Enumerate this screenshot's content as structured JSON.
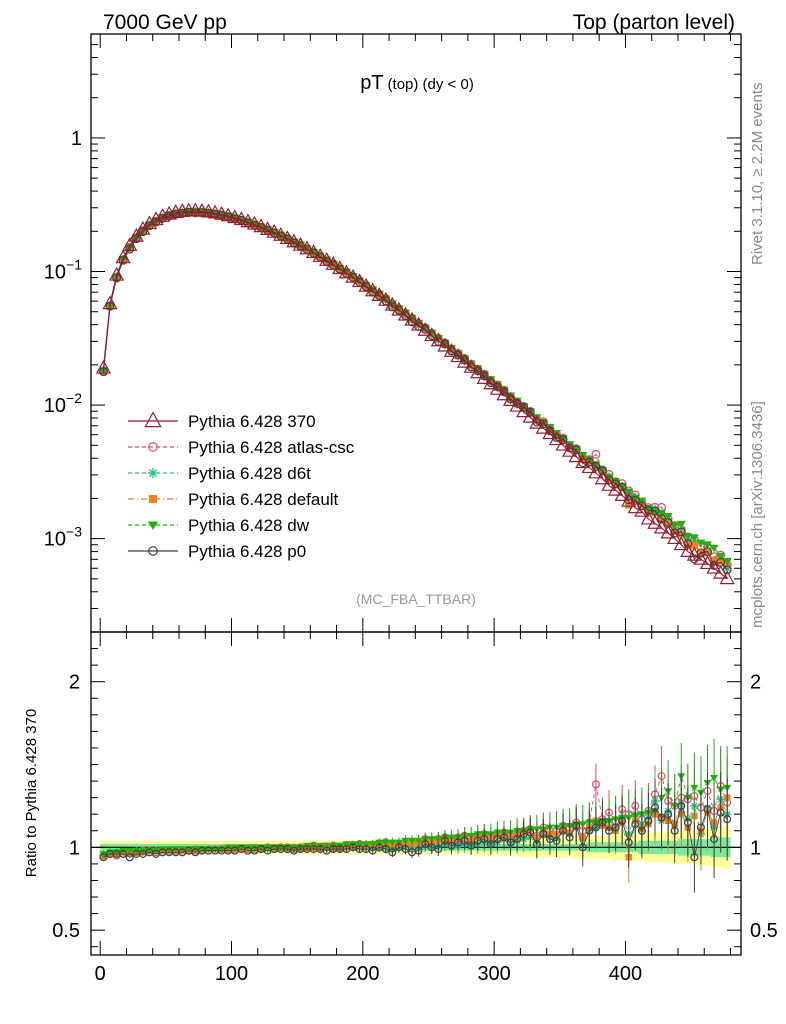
{
  "header": {
    "left": "7000 GeV pp",
    "right": "Top (parton level)"
  },
  "side_labels": {
    "rivet": "Rivet 3.1.10, ≥ 2.2M events",
    "mcplots": "mcplots.cern.ch [arXiv:1306.3436]"
  },
  "chart_data": {
    "type": "line",
    "title_main": "pT",
    "title_sub": "(top) (dy < 0)",
    "analysis_label": "(MC_FBA_TTBAR)",
    "upper": {
      "y_scale": "log",
      "ylim": [
        0.0002,
        6
      ],
      "y_ticks": [
        {
          "value": 1,
          "base": "1",
          "exp": ""
        },
        {
          "value": 0.1,
          "base": "10",
          "exp": "−1"
        },
        {
          "value": 0.01,
          "base": "10",
          "exp": "−2"
        },
        {
          "value": 0.001,
          "base": "10",
          "exp": "−3"
        }
      ]
    },
    "lower": {
      "ylabel": "Ratio to Pythia 6.428 370",
      "ylim": [
        0.35,
        2.3
      ],
      "y_ticks": [
        {
          "value": 2,
          "label": "2"
        },
        {
          "value": 1,
          "label": "1"
        },
        {
          "value": 0.5,
          "label": "0.5"
        }
      ]
    },
    "xlim": [
      -7,
      488
    ],
    "x_ticks": [
      {
        "value": 0,
        "label": "0"
      },
      {
        "value": 100,
        "label": "100"
      },
      {
        "value": 200,
        "label": "200"
      },
      {
        "value": 300,
        "label": "300"
      },
      {
        "value": 400,
        "label": "400"
      }
    ],
    "x": [
      2.5,
      7.5,
      12.5,
      17.5,
      22.5,
      27.5,
      32.5,
      37.5,
      42.5,
      47.5,
      52.5,
      57.5,
      62.5,
      67.5,
      72.5,
      77.5,
      82.5,
      87.5,
      92.5,
      97.5,
      102.5,
      107.5,
      112.5,
      117.5,
      122.5,
      127.5,
      132.5,
      137.5,
      142.5,
      147.5,
      152.5,
      157.5,
      162.5,
      167.5,
      172.5,
      177.5,
      182.5,
      187.5,
      192.5,
      197.5,
      202.5,
      207.5,
      212.5,
      217.5,
      222.5,
      227.5,
      232.5,
      237.5,
      242.5,
      247.5,
      252.5,
      257.5,
      262.5,
      267.5,
      272.5,
      277.5,
      282.5,
      287.5,
      292.5,
      297.5,
      302.5,
      307.5,
      312.5,
      317.5,
      322.5,
      327.5,
      332.5,
      337.5,
      342.5,
      347.5,
      352.5,
      357.5,
      362.5,
      367.5,
      372.5,
      377.5,
      382.5,
      387.5,
      392.5,
      397.5,
      402.5,
      407.5,
      412.5,
      417.5,
      422.5,
      427.5,
      432.5,
      437.5,
      442.5,
      447.5,
      452.5,
      457.5,
      462.5,
      467.5,
      472.5,
      477.5
    ],
    "reference": [
      0.0189,
      0.0573,
      0.0937,
      0.1265,
      0.1564,
      0.1833,
      0.2069,
      0.2273,
      0.2443,
      0.258,
      0.2686,
      0.2762,
      0.2811,
      0.2835,
      0.2837,
      0.282,
      0.2786,
      0.2738,
      0.2677,
      0.2606,
      0.2527,
      0.2442,
      0.2351,
      0.2257,
      0.216,
      0.2061,
      0.1962,
      0.1862,
      0.1763,
      0.1665,
      0.1569,
      0.1475,
      0.1383,
      0.1295,
      0.1209,
      0.1128,
      0.1049,
      0.0975,
      0.0905,
      0.0838,
      0.0775,
      0.0715,
      0.066,
      0.0608,
      0.0559,
      0.0513,
      0.0471,
      0.0432,
      0.0396,
      0.0362,
      0.0331,
      0.0302,
      0.0276,
      0.0252,
      0.023,
      0.0209,
      0.0191,
      0.0174,
      0.0158,
      0.0144,
      0.0131,
      0.0119,
      0.0108,
      0.0098,
      0.0089,
      0.0081,
      0.0073,
      0.0067,
      0.0061,
      0.0055,
      0.005,
      0.0045,
      0.0041,
      0.0037,
      0.0034,
      0.0031,
      0.0028,
      0.0025,
      0.0023,
      0.0021,
      0.0019,
      0.0017,
      0.0016,
      0.0014,
      0.0013,
      0.0012,
      0.0011,
      0.001,
      0.0009,
      0.0008,
      0.00075,
      0.0007,
      0.00065,
      0.0006,
      0.00055,
      0.0005
    ],
    "series": [
      {
        "name": "Pythia 6.428 370",
        "color": "#9a1a2e",
        "marker": "triangle-open",
        "dash": "",
        "ratio": [
          1.0,
          1.0,
          1.0,
          1.0,
          1.0,
          1.0,
          1.0,
          1.0,
          1.0,
          1.0,
          1.0,
          1.0,
          1.0,
          1.0,
          1.0,
          1.0,
          1.0,
          1.0,
          1.0,
          1.0,
          1.0,
          1.0,
          1.0,
          1.0,
          1.0,
          1.0,
          1.0,
          1.0,
          1.0,
          1.0,
          1.0,
          1.0,
          1.0,
          1.0,
          1.0,
          1.0,
          1.0,
          1.0,
          1.0,
          1.0,
          1.0,
          1.0,
          1.0,
          1.0,
          1.0,
          1.0,
          1.0,
          1.0,
          1.0,
          1.0,
          1.0,
          1.0,
          1.0,
          1.0,
          1.0,
          1.0,
          1.0,
          1.0,
          1.0,
          1.0,
          1.0,
          1.0,
          1.0,
          1.0,
          1.0,
          1.0,
          1.0,
          1.0,
          1.0,
          1.0,
          1.0,
          1.0,
          1.0,
          1.0,
          1.0,
          1.0,
          1.0,
          1.0,
          1.0,
          1.0,
          1.0,
          1.0,
          1.0,
          1.0,
          1.0,
          1.0,
          1.0,
          1.0,
          1.0,
          1.0,
          1.0,
          1.0,
          1.0,
          1.0,
          1.0,
          1.0
        ]
      },
      {
        "name": "Pythia 6.428 atlas-csc",
        "color": "#e8466e",
        "marker": "circle-open",
        "dash": "4,3",
        "ratio": [
          0.95,
          0.96,
          0.95,
          0.96,
          0.97,
          0.97,
          0.98,
          0.97,
          0.97,
          0.97,
          0.98,
          0.98,
          0.97,
          0.98,
          0.98,
          0.98,
          0.98,
          0.98,
          0.99,
          0.99,
          0.99,
          0.99,
          0.99,
          0.99,
          0.99,
          1.0,
          0.99,
          1.0,
          1.0,
          0.99,
          1.0,
          1.0,
          1.01,
          1.0,
          1.0,
          1.01,
          1.0,
          1.01,
          1.01,
          1.02,
          1.01,
          1.0,
          1.02,
          1.03,
          1.01,
          1.02,
          1.02,
          1.03,
          1.03,
          1.05,
          1.04,
          1.05,
          1.06,
          1.04,
          1.06,
          1.07,
          1.06,
          1.07,
          1.08,
          1.06,
          1.08,
          1.09,
          1.07,
          1.08,
          1.1,
          1.11,
          1.07,
          1.12,
          1.1,
          1.1,
          1.13,
          1.11,
          1.15,
          1.1,
          1.15,
          1.38,
          1.17,
          1.21,
          1.16,
          1.23,
          1.2,
          1.25,
          1.17,
          1.22,
          1.32,
          1.43,
          1.28,
          1.25,
          1.3,
          1.29,
          1.31,
          1.24,
          1.34,
          1.22,
          1.37,
          1.27
        ]
      },
      {
        "name": "Pythia 6.428 d6t",
        "color": "#20c090",
        "marker": "asterisk",
        "dash": "4,3",
        "ratio": [
          0.96,
          0.97,
          0.97,
          0.97,
          0.97,
          0.98,
          0.97,
          0.98,
          0.98,
          0.98,
          0.98,
          0.98,
          0.98,
          0.98,
          0.99,
          0.98,
          0.99,
          0.99,
          0.99,
          0.99,
          0.99,
          0.99,
          0.99,
          0.99,
          0.99,
          0.99,
          0.99,
          1.0,
          0.99,
          1.0,
          0.99,
          1.0,
          1.0,
          1.0,
          1.0,
          0.99,
          1.0,
          1.0,
          1.0,
          1.0,
          1.0,
          1.0,
          1.0,
          1.0,
          0.99,
          1.0,
          1.0,
          1.0,
          0.99,
          1.01,
          1.0,
          1.01,
          1.02,
          1.0,
          1.01,
          1.02,
          1.01,
          1.02,
          1.03,
          1.02,
          1.03,
          1.05,
          1.02,
          1.04,
          1.05,
          1.06,
          1.03,
          1.08,
          1.06,
          1.05,
          1.1,
          1.08,
          1.12,
          1.05,
          1.1,
          1.12,
          1.15,
          1.16,
          1.12,
          1.18,
          1.08,
          1.2,
          1.14,
          1.18,
          1.28,
          1.16,
          1.22,
          1.15,
          1.26,
          1.17,
          1.25,
          1.08,
          1.24,
          1.12,
          1.29,
          1.2
        ]
      },
      {
        "name": "Pythia 6.428 default",
        "color": "#f08020",
        "marker": "square-filled",
        "dash": "6,3,1,3",
        "ratio": [
          0.95,
          0.96,
          0.96,
          0.97,
          0.97,
          0.97,
          0.97,
          0.98,
          0.98,
          0.98,
          0.98,
          0.98,
          0.98,
          0.98,
          0.99,
          0.99,
          0.99,
          0.99,
          0.99,
          0.99,
          0.99,
          0.99,
          0.99,
          1.0,
          0.99,
          1.0,
          1.0,
          1.0,
          1.0,
          1.0,
          1.0,
          1.0,
          1.0,
          1.0,
          1.01,
          1.0,
          1.01,
          1.0,
          1.01,
          1.01,
          1.01,
          1.02,
          1.01,
          1.02,
          1.02,
          1.01,
          1.03,
          1.02,
          1.03,
          1.04,
          1.03,
          1.04,
          1.05,
          1.03,
          1.05,
          1.06,
          1.04,
          1.06,
          1.07,
          1.05,
          1.07,
          1.08,
          1.06,
          1.08,
          1.09,
          1.1,
          1.06,
          1.1,
          1.08,
          1.08,
          1.11,
          1.09,
          1.13,
          1.06,
          1.12,
          1.16,
          1.13,
          1.12,
          1.1,
          1.15,
          0.94,
          1.16,
          1.11,
          1.14,
          1.2,
          1.18,
          1.16,
          1.14,
          1.2,
          1.12,
          1.19,
          1.1,
          1.21,
          1.15,
          1.24,
          1.3
        ]
      },
      {
        "name": "Pythia 6.428 dw",
        "color": "#20b010",
        "marker": "triangle-down-filled",
        "dash": "4,3",
        "ratio": [
          0.96,
          0.97,
          0.97,
          0.98,
          0.98,
          0.98,
          0.98,
          0.98,
          0.98,
          0.99,
          0.99,
          0.99,
          0.99,
          0.99,
          0.99,
          0.99,
          0.99,
          0.99,
          0.99,
          1.0,
          1.0,
          1.0,
          1.0,
          1.0,
          1.0,
          1.0,
          1.0,
          1.0,
          1.0,
          1.0,
          1.0,
          1.01,
          1.01,
          1.01,
          1.01,
          1.01,
          1.01,
          1.02,
          1.02,
          1.02,
          1.02,
          1.02,
          1.03,
          1.03,
          1.03,
          1.03,
          1.04,
          1.04,
          1.04,
          1.05,
          1.05,
          1.05,
          1.06,
          1.06,
          1.06,
          1.07,
          1.07,
          1.08,
          1.08,
          1.08,
          1.09,
          1.09,
          1.09,
          1.1,
          1.1,
          1.11,
          1.11,
          1.11,
          1.12,
          1.12,
          1.13,
          1.13,
          1.14,
          1.14,
          1.15,
          1.15,
          1.16,
          1.16,
          1.17,
          1.18,
          1.18,
          1.19,
          1.2,
          1.21,
          1.22,
          1.3,
          1.34,
          1.25,
          1.43,
          1.3,
          1.36,
          1.33,
          1.39,
          1.42,
          1.35,
          1.36
        ]
      },
      {
        "name": "Pythia 6.428 p0",
        "color": "#404040",
        "marker": "circle-open",
        "dash": "",
        "ratio": [
          0.94,
          0.96,
          0.96,
          0.96,
          0.94,
          0.96,
          0.96,
          0.97,
          0.96,
          0.97,
          0.97,
          0.97,
          0.97,
          0.98,
          0.97,
          0.98,
          0.98,
          0.98,
          0.98,
          0.98,
          0.98,
          0.99,
          0.98,
          0.98,
          0.99,
          0.98,
          0.99,
          0.99,
          0.99,
          0.98,
          0.99,
          0.99,
          0.99,
          0.99,
          0.98,
          0.99,
          0.99,
          0.99,
          1.0,
          0.99,
          0.99,
          0.98,
          1.0,
          0.99,
          0.97,
          1.0,
          0.99,
          0.97,
          0.98,
          1.02,
          1.0,
          0.99,
          1.04,
          1.01,
          1.03,
          1.04,
          1.01,
          1.04,
          1.05,
          1.02,
          1.05,
          1.06,
          1.03,
          1.05,
          1.08,
          1.09,
          1.02,
          1.08,
          1.05,
          1.04,
          1.1,
          1.06,
          1.13,
          1.0,
          1.1,
          1.12,
          1.15,
          1.1,
          1.12,
          1.16,
          1.03,
          1.14,
          1.1,
          1.16,
          1.24,
          1.18,
          1.2,
          1.1,
          1.25,
          1.15,
          0.94,
          1.12,
          1.23,
          1.05,
          1.21,
          1.17
        ]
      }
    ],
    "ratio_band_outer": {
      "color": "#ffff99",
      "lower": [
        0.96,
        0.96,
        0.96,
        0.96,
        0.96,
        0.96,
        0.96,
        0.96,
        0.96,
        0.96,
        0.96,
        0.96,
        0.96,
        0.96,
        0.96,
        0.96,
        0.96,
        0.96,
        0.96,
        0.96,
        0.96,
        0.96,
        0.96,
        0.96,
        0.96,
        0.96,
        0.96,
        0.96,
        0.96,
        0.96,
        0.96,
        0.96,
        0.96,
        0.96,
        0.96,
        0.96,
        0.96,
        0.96,
        0.96,
        0.96,
        0.96,
        0.96,
        0.96,
        0.96,
        0.96,
        0.96,
        0.96,
        0.96,
        0.96,
        0.96,
        0.96,
        0.96,
        0.96,
        0.96,
        0.96,
        0.96,
        0.96,
        0.95,
        0.95,
        0.95,
        0.95,
        0.95,
        0.95,
        0.95,
        0.94,
        0.94,
        0.94,
        0.94,
        0.94,
        0.94,
        0.94,
        0.94,
        0.93,
        0.93,
        0.93,
        0.93,
        0.93,
        0.93,
        0.92,
        0.92,
        0.92,
        0.92,
        0.92,
        0.91,
        0.91,
        0.91,
        0.91,
        0.9,
        0.9,
        0.9,
        0.9,
        0.89,
        0.89,
        0.88,
        0.88,
        0.87
      ],
      "upper": [
        1.04,
        1.04,
        1.04,
        1.04,
        1.04,
        1.04,
        1.04,
        1.04,
        1.04,
        1.04,
        1.04,
        1.04,
        1.04,
        1.04,
        1.04,
        1.04,
        1.04,
        1.04,
        1.04,
        1.04,
        1.04,
        1.04,
        1.04,
        1.04,
        1.04,
        1.04,
        1.04,
        1.04,
        1.04,
        1.04,
        1.04,
        1.04,
        1.04,
        1.04,
        1.04,
        1.04,
        1.04,
        1.04,
        1.04,
        1.04,
        1.04,
        1.04,
        1.04,
        1.04,
        1.04,
        1.04,
        1.04,
        1.04,
        1.04,
        1.04,
        1.04,
        1.04,
        1.04,
        1.04,
        1.04,
        1.04,
        1.04,
        1.05,
        1.05,
        1.05,
        1.05,
        1.05,
        1.05,
        1.05,
        1.06,
        1.06,
        1.06,
        1.06,
        1.06,
        1.06,
        1.06,
        1.06,
        1.07,
        1.07,
        1.07,
        1.07,
        1.07,
        1.07,
        1.08,
        1.08,
        1.08,
        1.08,
        1.08,
        1.09,
        1.09,
        1.09,
        1.09,
        1.1,
        1.1,
        1.1,
        1.1,
        1.11,
        1.11,
        1.12,
        1.12,
        1.13
      ]
    },
    "ratio_band_inner": {
      "color": "#7ee89a",
      "lower": [
        0.98,
        0.98,
        0.98,
        0.98,
        0.98,
        0.98,
        0.98,
        0.98,
        0.98,
        0.98,
        0.98,
        0.98,
        0.98,
        0.98,
        0.98,
        0.98,
        0.98,
        0.98,
        0.98,
        0.98,
        0.98,
        0.98,
        0.98,
        0.98,
        0.98,
        0.98,
        0.98,
        0.98,
        0.98,
        0.98,
        0.98,
        0.98,
        0.98,
        0.98,
        0.98,
        0.98,
        0.98,
        0.98,
        0.98,
        0.98,
        0.98,
        0.98,
        0.98,
        0.98,
        0.98,
        0.98,
        0.98,
        0.98,
        0.98,
        0.98,
        0.98,
        0.98,
        0.98,
        0.98,
        0.98,
        0.98,
        0.98,
        0.98,
        0.98,
        0.98,
        0.98,
        0.98,
        0.98,
        0.98,
        0.98,
        0.98,
        0.98,
        0.98,
        0.98,
        0.98,
        0.98,
        0.98,
        0.98,
        0.98,
        0.97,
        0.97,
        0.97,
        0.97,
        0.97,
        0.97,
        0.97,
        0.97,
        0.96,
        0.96,
        0.96,
        0.96,
        0.96,
        0.96,
        0.95,
        0.95,
        0.95,
        0.95,
        0.95,
        0.94,
        0.94,
        0.94
      ],
      "upper": [
        1.02,
        1.02,
        1.02,
        1.02,
        1.02,
        1.02,
        1.02,
        1.02,
        1.02,
        1.02,
        1.02,
        1.02,
        1.02,
        1.02,
        1.02,
        1.02,
        1.02,
        1.02,
        1.02,
        1.02,
        1.02,
        1.02,
        1.02,
        1.02,
        1.02,
        1.02,
        1.02,
        1.02,
        1.02,
        1.02,
        1.02,
        1.02,
        1.02,
        1.02,
        1.02,
        1.02,
        1.02,
        1.02,
        1.02,
        1.02,
        1.02,
        1.02,
        1.02,
        1.02,
        1.02,
        1.02,
        1.02,
        1.02,
        1.02,
        1.02,
        1.02,
        1.02,
        1.02,
        1.02,
        1.02,
        1.02,
        1.02,
        1.02,
        1.02,
        1.02,
        1.02,
        1.02,
        1.02,
        1.02,
        1.02,
        1.02,
        1.02,
        1.02,
        1.02,
        1.02,
        1.02,
        1.02,
        1.02,
        1.02,
        1.03,
        1.03,
        1.03,
        1.03,
        1.03,
        1.03,
        1.03,
        1.03,
        1.04,
        1.04,
        1.04,
        1.04,
        1.04,
        1.04,
        1.05,
        1.05,
        1.05,
        1.05,
        1.05,
        1.06,
        1.06,
        1.06
      ]
    }
  }
}
